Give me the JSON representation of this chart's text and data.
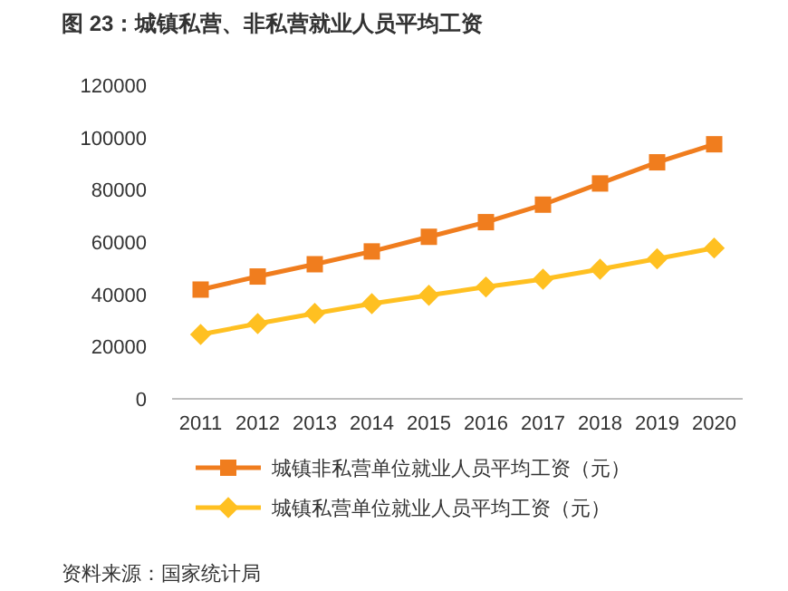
{
  "chart_data": {
    "type": "line",
    "title": "图 23：城镇私营、非私营就业人员平均工资",
    "categories": [
      "2011",
      "2012",
      "2013",
      "2014",
      "2015",
      "2016",
      "2017",
      "2018",
      "2019",
      "2020"
    ],
    "series": [
      {
        "name": "城镇非私营单位就业人员平均工资（元）",
        "color": "#f07d1e",
        "marker": "square",
        "values": [
          41800,
          46800,
          51500,
          56400,
          62000,
          67600,
          74300,
          82400,
          90500,
          97400
        ]
      },
      {
        "name": "城镇私营单位就业人员平均工资（元）",
        "color": "#ffc021",
        "marker": "diamond",
        "values": [
          24600,
          28800,
          32700,
          36400,
          39600,
          42800,
          45800,
          49600,
          53600,
          57700
        ]
      }
    ],
    "ylim": [
      0,
      120000
    ],
    "yticks": [
      0,
      20000,
      40000,
      60000,
      80000,
      100000,
      120000
    ],
    "legend": "bottom",
    "grid": false,
    "annotations": [
      "资料来源：国家统计局"
    ]
  }
}
